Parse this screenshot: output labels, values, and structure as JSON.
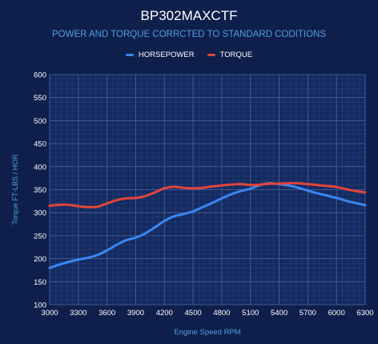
{
  "chart_data": {
    "type": "line",
    "title": "BP302MAXCTF",
    "subtitle": "POWER AND TORQUE CORRCTED TO STANDARD CODITIONS",
    "xlabel": "Engine Speed RPM",
    "ylabel": "Torque FT-LBS / HOR",
    "xlim": [
      3000,
      6300
    ],
    "ylim": [
      100,
      600
    ],
    "xticks": [
      3000,
      3300,
      3600,
      3900,
      4200,
      4500,
      4800,
      5100,
      5400,
      5700,
      6000,
      6300
    ],
    "yticks": [
      100,
      150,
      200,
      250,
      300,
      350,
      400,
      450,
      500,
      550,
      600
    ],
    "grid": true,
    "legend_position": "top",
    "series": [
      {
        "name": "HORSEPOWER",
        "color": "#3a86f0",
        "x": [
          3000,
          3100,
          3200,
          3300,
          3400,
          3500,
          3600,
          3700,
          3800,
          3900,
          4000,
          4100,
          4200,
          4300,
          4400,
          4500,
          4600,
          4700,
          4800,
          4900,
          5000,
          5100,
          5200,
          5300,
          5400,
          5500,
          5600,
          5700,
          5800,
          5900,
          6000,
          6100,
          6200,
          6300
        ],
        "y": [
          180,
          187,
          193,
          198,
          202,
          208,
          218,
          230,
          240,
          246,
          255,
          268,
          282,
          292,
          297,
          303,
          312,
          321,
          331,
          340,
          347,
          352,
          360,
          364,
          362,
          359,
          354,
          348,
          342,
          337,
          332,
          326,
          321,
          316
        ]
      },
      {
        "name": "TORQUE",
        "color": "#e0453a",
        "x": [
          3000,
          3100,
          3200,
          3300,
          3400,
          3500,
          3600,
          3700,
          3800,
          3900,
          4000,
          4100,
          4200,
          4300,
          4400,
          4500,
          4600,
          4700,
          4800,
          4900,
          5000,
          5100,
          5200,
          5300,
          5400,
          5500,
          5600,
          5700,
          5800,
          5900,
          6000,
          6100,
          6200,
          6300
        ],
        "y": [
          315,
          317,
          317,
          314,
          312,
          313,
          320,
          327,
          331,
          332,
          336,
          344,
          353,
          356,
          354,
          353,
          354,
          357,
          359,
          361,
          362,
          360,
          361,
          363,
          363,
          364,
          364,
          362,
          360,
          358,
          356,
          351,
          347,
          344
        ]
      }
    ]
  }
}
